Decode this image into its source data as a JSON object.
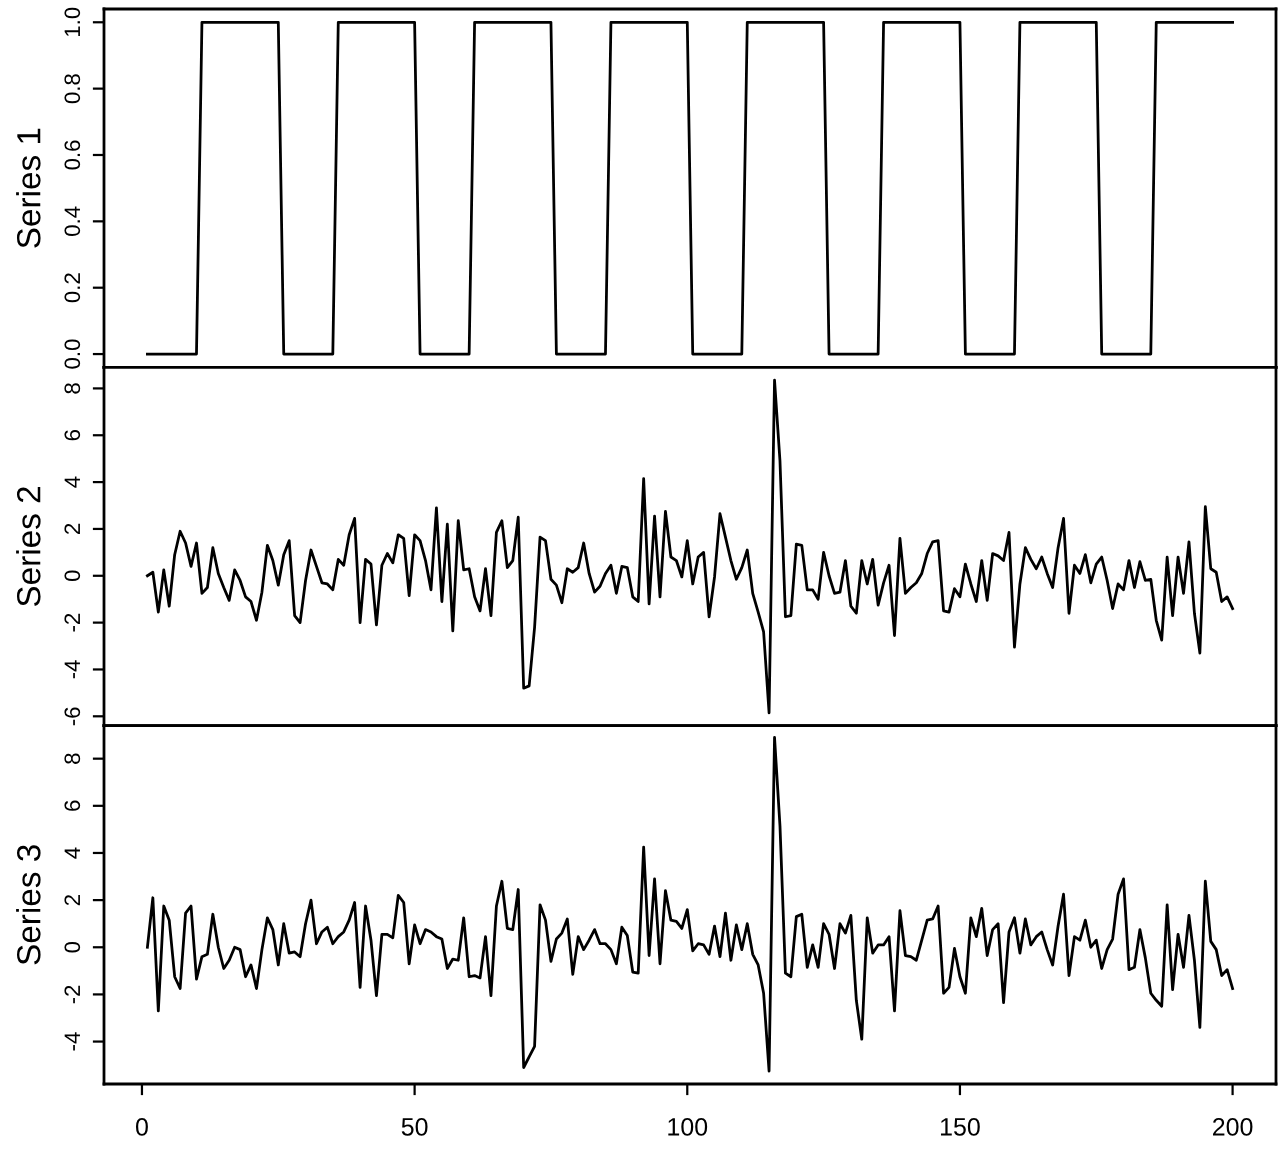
{
  "chart_data": [
    {
      "type": "line",
      "ylabel": "Series 1",
      "color": "#000000",
      "x": [
        1,
        10,
        11,
        25,
        26,
        35,
        36,
        50,
        51,
        60,
        61,
        75,
        76,
        85,
        86,
        100,
        101,
        110,
        111,
        125,
        126,
        135,
        136,
        150,
        151,
        160,
        161,
        175,
        176,
        185,
        186,
        200
      ],
      "values": [
        0,
        0,
        1,
        1,
        0,
        0,
        1,
        1,
        0,
        0,
        1,
        1,
        0,
        0,
        1,
        1,
        0,
        0,
        1,
        1,
        0,
        0,
        1,
        1,
        0,
        0,
        1,
        1,
        0,
        0,
        1,
        1
      ],
      "xlim": [
        -6.96,
        207.96
      ],
      "ylim": [
        -0.04,
        1.04
      ],
      "yticks": [
        {
          "value": 0,
          "label": "0.0"
        },
        0.2,
        0.4,
        0.6,
        0.8,
        {
          "value": 1,
          "label": "1.0"
        }
      ],
      "tick_labels": "y"
    },
    {
      "type": "line",
      "ylabel": "Series 2",
      "color": "#000000",
      "x": [
        1,
        2,
        3,
        4,
        5,
        6,
        7,
        8,
        9,
        10,
        11,
        12,
        13,
        14,
        15,
        16,
        17,
        18,
        19,
        20,
        21,
        22,
        23,
        24,
        25,
        26,
        27,
        28,
        29,
        30,
        31,
        32,
        33,
        34,
        35,
        36,
        37,
        38,
        39,
        40,
        41,
        42,
        43,
        44,
        45,
        46,
        47,
        48,
        49,
        50,
        51,
        52,
        53,
        54,
        55,
        56,
        57,
        58,
        59,
        60,
        61,
        62,
        63,
        64,
        65,
        66,
        67,
        68,
        69,
        70,
        71,
        72,
        73,
        74,
        75,
        76,
        77,
        78,
        79,
        80,
        81,
        82,
        83,
        84,
        85,
        86,
        87,
        88,
        89,
        90,
        91,
        92,
        93,
        94,
        95,
        96,
        97,
        98,
        99,
        100,
        101,
        102,
        103,
        104,
        105,
        106,
        107,
        108,
        109,
        110,
        111,
        112,
        113,
        114,
        115,
        116,
        117,
        118,
        119,
        120,
        121,
        122,
        123,
        124,
        125,
        126,
        127,
        128,
        129,
        130,
        131,
        132,
        133,
        134,
        135,
        136,
        137,
        138,
        139,
        140,
        141,
        142,
        143,
        144,
        145,
        146,
        147,
        148,
        149,
        150,
        151,
        152,
        153,
        154,
        155,
        156,
        157,
        158,
        159,
        160,
        161,
        162,
        163,
        164,
        165,
        166,
        167,
        168,
        169,
        170,
        171,
        172,
        173,
        174,
        175,
        176,
        177,
        178,
        179,
        180,
        181,
        182,
        183,
        184,
        185,
        186,
        187,
        188,
        189,
        190,
        191,
        192,
        193,
        194,
        195,
        196,
        197,
        198,
        199,
        200
      ],
      "values": [
        0,
        0.15,
        -1.55,
        0.25,
        -1.3,
        0.9,
        1.9,
        1.4,
        0.4,
        1.4,
        -0.75,
        -0.5,
        1.2,
        0.1,
        -0.5,
        -1.05,
        0.25,
        -0.2,
        -0.9,
        -1.1,
        -1.9,
        -0.7,
        1.3,
        0.65,
        -0.4,
        0.9,
        1.5,
        -1.7,
        -2.0,
        -0.2,
        1.1,
        0.4,
        -0.3,
        -0.35,
        -0.6,
        0.7,
        0.45,
        1.75,
        2.45,
        -2.0,
        0.7,
        0.5,
        -2.1,
        0.45,
        0.95,
        0.55,
        1.75,
        1.6,
        -0.85,
        1.75,
        1.5,
        0.65,
        -0.6,
        2.9,
        -1.1,
        2.2,
        -2.35,
        2.35,
        0.25,
        0.3,
        -0.9,
        -1.5,
        0.3,
        -1.7,
        1.85,
        2.35,
        0.35,
        0.65,
        2.5,
        -4.8,
        -4.7,
        -2.2,
        1.65,
        1.5,
        -0.15,
        -0.4,
        -1.15,
        0.3,
        0.15,
        0.35,
        1.4,
        0.1,
        -0.7,
        -0.45,
        0.1,
        0.45,
        -0.75,
        0.4,
        0.35,
        -0.9,
        -1.1,
        4.15,
        -1.2,
        2.55,
        -0.9,
        2.75,
        0.8,
        0.65,
        -0.05,
        1.5,
        -0.35,
        0.8,
        1.0,
        -1.75,
        -0.05,
        2.65,
        1.65,
        0.65,
        -0.15,
        0.35,
        1.1,
        -0.75,
        -1.55,
        -2.4,
        -5.85,
        8.35,
        4.9,
        -1.75,
        -1.7,
        1.35,
        1.3,
        -0.6,
        -0.6,
        -1.0,
        1.0,
        0,
        -0.75,
        -0.7,
        0.65,
        -1.3,
        -1.6,
        0.65,
        -0.35,
        0.7,
        -1.25,
        -0.3,
        0.45,
        -2.55,
        1.6,
        -0.75,
        -0.5,
        -0.3,
        0.1,
        0.95,
        1.45,
        1.5,
        -1.5,
        -1.55,
        -0.55,
        -0.9,
        0.5,
        -0.35,
        -1.1,
        0.65,
        -1.05,
        0.95,
        0.85,
        0.65,
        1.85,
        -3.05,
        -0.35,
        1.2,
        0.7,
        0.3,
        0.8,
        0.1,
        -0.5,
        1.2,
        2.45,
        -1.6,
        0.45,
        0.1,
        0.9,
        -0.3,
        0.5,
        0.8,
        -0.2,
        -1.4,
        -0.35,
        -0.6,
        0.65,
        -0.5,
        0.6,
        -0.2,
        -0.15,
        -1.9,
        -2.75,
        0.8,
        -1.7,
        0.8,
        -0.75,
        1.45,
        -1.6,
        -3.3,
        2.95,
        0.3,
        0.15,
        -1.1,
        -0.9,
        -1.4
      ],
      "xlim": [
        -6.96,
        207.96
      ],
      "ylim": [
        -6.4,
        8.9
      ],
      "yticks": [
        -6,
        -4,
        -2,
        0,
        2,
        4,
        6,
        8
      ],
      "tick_labels": "y"
    },
    {
      "type": "line",
      "ylabel": "Series 3",
      "color": "#000000",
      "x": [
        1,
        2,
        3,
        4,
        5,
        6,
        7,
        8,
        9,
        10,
        11,
        12,
        13,
        14,
        15,
        16,
        17,
        18,
        19,
        20,
        21,
        22,
        23,
        24,
        25,
        26,
        27,
        28,
        29,
        30,
        31,
        32,
        33,
        34,
        35,
        36,
        37,
        38,
        39,
        40,
        41,
        42,
        43,
        44,
        45,
        46,
        47,
        48,
        49,
        50,
        51,
        52,
        53,
        54,
        55,
        56,
        57,
        58,
        59,
        60,
        61,
        62,
        63,
        64,
        65,
        66,
        67,
        68,
        69,
        70,
        71,
        72,
        73,
        74,
        75,
        76,
        77,
        78,
        79,
        80,
        81,
        82,
        83,
        84,
        85,
        86,
        87,
        88,
        89,
        90,
        91,
        92,
        93,
        94,
        95,
        96,
        97,
        98,
        99,
        100,
        101,
        102,
        103,
        104,
        105,
        106,
        107,
        108,
        109,
        110,
        111,
        112,
        113,
        114,
        115,
        116,
        117,
        118,
        119,
        120,
        121,
        122,
        123,
        124,
        125,
        126,
        127,
        128,
        129,
        130,
        131,
        132,
        133,
        134,
        135,
        136,
        137,
        138,
        139,
        140,
        141,
        142,
        143,
        144,
        145,
        146,
        147,
        148,
        149,
        150,
        151,
        152,
        153,
        154,
        155,
        156,
        157,
        158,
        159,
        160,
        161,
        162,
        163,
        164,
        165,
        166,
        167,
        168,
        169,
        170,
        171,
        172,
        173,
        174,
        175,
        176,
        177,
        178,
        179,
        180,
        181,
        182,
        183,
        184,
        185,
        186,
        187,
        188,
        189,
        190,
        191,
        192,
        193,
        194,
        195,
        196,
        197,
        198,
        199,
        200
      ],
      "values": [
        0,
        2.1,
        -2.7,
        1.75,
        1.15,
        -1.25,
        -1.75,
        1.45,
        1.75,
        -1.35,
        -0.4,
        -0.3,
        1.4,
        0,
        -0.9,
        -0.55,
        0,
        -0.1,
        -1.25,
        -0.75,
        -1.75,
        -0.1,
        1.25,
        0.75,
        -0.75,
        1.0,
        -0.25,
        -0.2,
        -0.4,
        1.0,
        2.0,
        0.15,
        0.65,
        0.85,
        0.15,
        0.45,
        0.65,
        1.15,
        1.9,
        -1.7,
        1.75,
        0.3,
        -2.05,
        0.55,
        0.55,
        0.4,
        2.2,
        1.9,
        -0.7,
        0.95,
        0.15,
        0.75,
        0.65,
        0.45,
        0.35,
        -0.9,
        -0.5,
        -0.55,
        1.25,
        -1.25,
        -1.2,
        -1.3,
        0.45,
        -2.05,
        1.75,
        2.8,
        0.8,
        0.75,
        2.45,
        -5.1,
        -4.65,
        -4.2,
        1.8,
        1.15,
        -0.6,
        0.35,
        0.6,
        1.2,
        -1.15,
        0.45,
        -0.1,
        0.3,
        0.75,
        0.15,
        0.15,
        -0.1,
        -0.7,
        0.85,
        0.5,
        -1.05,
        -1.1,
        4.25,
        -0.35,
        2.9,
        -0.7,
        2.4,
        1.15,
        1.1,
        0.8,
        1.6,
        -0.15,
        0.15,
        0.1,
        -0.3,
        0.9,
        -0.4,
        1.45,
        -0.55,
        0.95,
        -0.1,
        1.0,
        -0.3,
        -0.75,
        -1.95,
        -5.25,
        8.9,
        5.15,
        -1.1,
        -1.25,
        1.3,
        1.4,
        -0.85,
        0.1,
        -0.85,
        1.0,
        0.55,
        -0.9,
        1.0,
        0.6,
        1.35,
        -2.25,
        -3.9,
        1.25,
        -0.25,
        0.1,
        0.1,
        0.45,
        -2.7,
        1.55,
        -0.35,
        -0.4,
        -0.55,
        0.3,
        1.15,
        1.2,
        1.75,
        -1.95,
        -1.7,
        -0.05,
        -1.25,
        -1.95,
        1.25,
        0.45,
        1.65,
        -0.35,
        0.75,
        1.0,
        -2.35,
        0.65,
        1.25,
        -0.25,
        1.2,
        0.1,
        0.45,
        0.65,
        -0.1,
        -0.75,
        0.9,
        2.25,
        -1.2,
        0.45,
        0.3,
        1.15,
        0,
        0.3,
        -0.9,
        -0.1,
        0.35,
        2.25,
        2.9,
        -0.95,
        -0.85,
        0.75,
        -0.45,
        -1.95,
        -2.25,
        -2.5,
        1.8,
        -1.8,
        0.55,
        -0.85,
        1.35,
        -0.55,
        -3.4,
        2.8,
        0.25,
        -0.1,
        -1.2,
        -0.95,
        -1.75
      ],
      "xlim": [
        -6.96,
        207.96
      ],
      "ylim": [
        -5.8,
        9.4
      ],
      "xticks": [
        0,
        50,
        100,
        150,
        200
      ],
      "yticks": [
        -4,
        -2,
        0,
        2,
        4,
        6,
        8
      ]
    }
  ]
}
